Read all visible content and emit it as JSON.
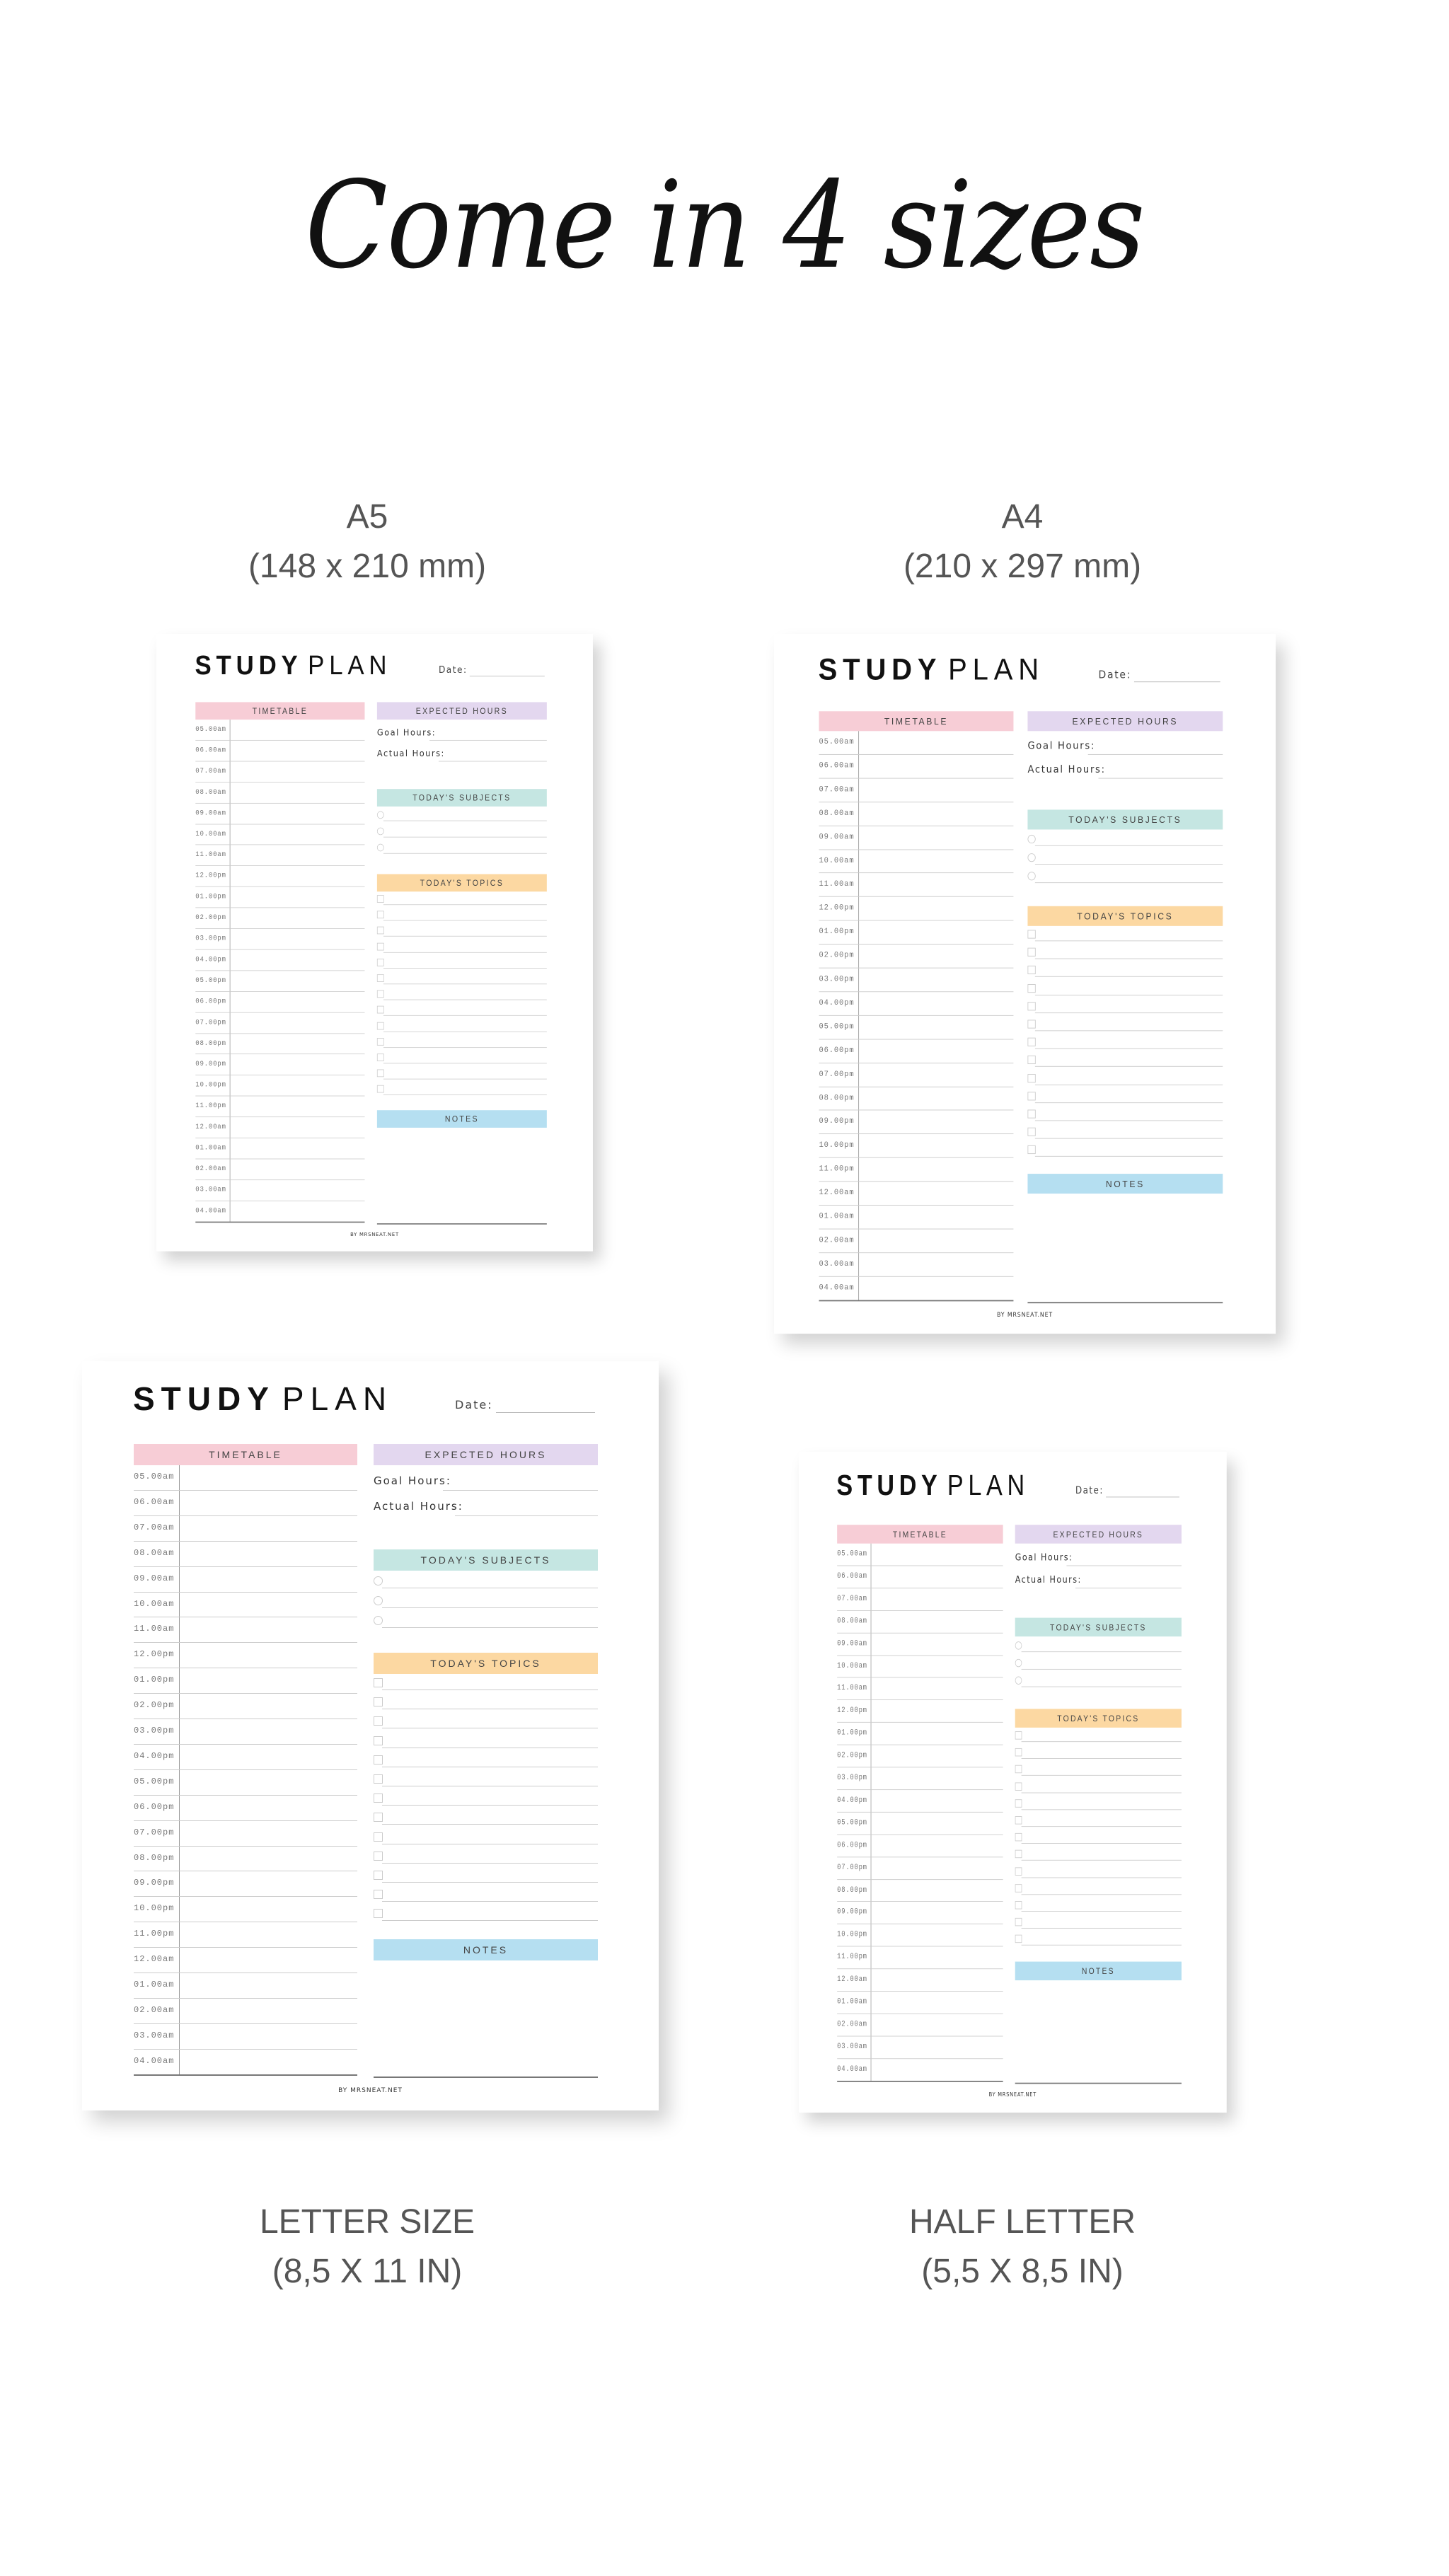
{
  "headline": "Come in 4 sizes",
  "sizes": [
    {
      "name": "A5",
      "dimensions": "(148 x 210 mm)"
    },
    {
      "name": "A4",
      "dimensions": "(210 x 297 mm)"
    },
    {
      "name": "LETTER SIZE",
      "dimensions": "(8,5 X 11 IN)"
    },
    {
      "name": "HALF LETTER",
      "dimensions": "(5,5 X 8,5 IN)"
    }
  ],
  "planner": {
    "title_bold": "STUDY",
    "title_light": "PLAN",
    "date_label": "Date:",
    "sections": {
      "timetable": "TIMETABLE",
      "expected_hours": "EXPECTED HOURS",
      "subjects": "TODAY'S SUBJECTS",
      "topics": "TODAY'S TOPICS",
      "notes": "NOTES"
    },
    "goal_hours_label": "Goal Hours:",
    "actual_hours_label": "Actual Hours:",
    "times": [
      "05.00am",
      "06.00am",
      "07.00am",
      "08.00am",
      "09.00am",
      "10.00am",
      "11.00am",
      "12.00pm",
      "01.00pm",
      "02.00pm",
      "03.00pm",
      "04.00pm",
      "05.00pm",
      "06.00pm",
      "07.00pm",
      "08.00pm",
      "09.00pm",
      "10.00pm",
      "11.00pm",
      "12.00am",
      "01.00am",
      "02.00am",
      "03.00am",
      "04.00am"
    ],
    "subject_slots": 3,
    "topic_slots": 13,
    "footer": "BY MRSNEAT.NET",
    "colors": {
      "timetable": "#f7cdd6",
      "expected_hours": "#e3d7ef",
      "subjects": "#c5e6e2",
      "topics": "#fcd8a2",
      "notes": "#b5dff1"
    }
  }
}
